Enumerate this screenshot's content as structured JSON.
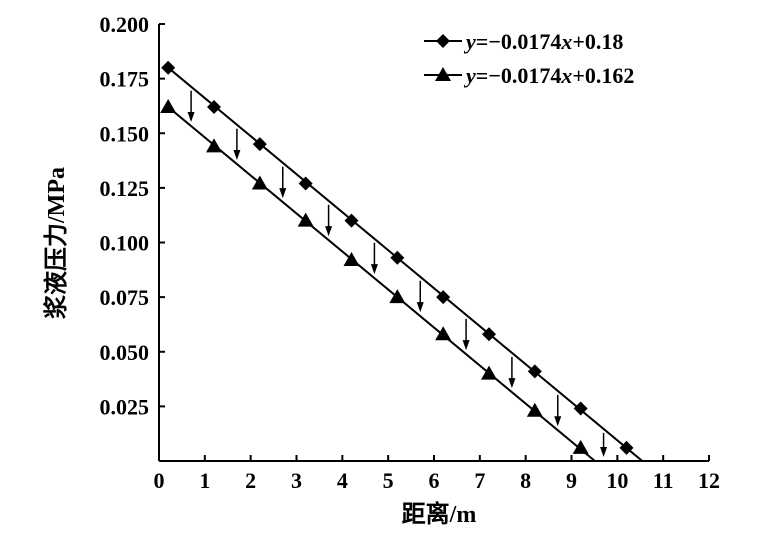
{
  "chart_data": {
    "type": "line",
    "xlabel": "距离/m",
    "ylabel": "浆液压力/MPa",
    "xlim": [
      0,
      12
    ],
    "ylim": [
      0,
      0.2
    ],
    "x_ticks": [
      "0",
      "1",
      "2",
      "3",
      "4",
      "5",
      "6",
      "7",
      "8",
      "9",
      "10",
      "11",
      "12"
    ],
    "y_ticks": [
      "0.025",
      "0.050",
      "0.075",
      "0.100",
      "0.125",
      "0.150",
      "0.175",
      "0.200"
    ],
    "y_tick_values": [
      0.025,
      0.05,
      0.075,
      0.1,
      0.125,
      0.15,
      0.175,
      0.2
    ],
    "grid": false,
    "legend_position": "top-right",
    "series": [
      {
        "name": "y=−0.0174x+0.18",
        "marker": "diamond",
        "color": "#000000",
        "slope": -0.0174,
        "intercept": 0.18,
        "x": [
          0.2,
          1.2,
          2.2,
          3.2,
          4.2,
          5.2,
          6.2,
          7.2,
          8.2,
          9.2,
          10.2
        ],
        "y": [
          0.18,
          0.162,
          0.145,
          0.127,
          0.11,
          0.093,
          0.075,
          0.058,
          0.041,
          0.024,
          0.006
        ]
      },
      {
        "name": "y=−0.0174x+0.162",
        "marker": "triangle",
        "color": "#000000",
        "slope": -0.0174,
        "intercept": 0.162,
        "x": [
          0.2,
          1.2,
          2.2,
          3.2,
          4.2,
          5.2,
          6.2,
          7.2,
          8.2,
          9.2
        ],
        "y": [
          0.162,
          0.144,
          0.127,
          0.11,
          0.092,
          0.075,
          0.058,
          0.04,
          0.023,
          0.006
        ]
      }
    ],
    "arrows": {
      "x": [
        0.7,
        1.7,
        2.7,
        3.7,
        4.7,
        5.7,
        6.7,
        7.7,
        8.7,
        9.7
      ]
    }
  },
  "legend": {
    "items": [
      {
        "prefix": "y",
        "rest": "=−0.0174",
        "xvar": "x",
        "tail": "+0.18"
      },
      {
        "prefix": "y",
        "rest": "=−0.0174",
        "xvar": "x",
        "tail": "+0.162"
      }
    ]
  }
}
